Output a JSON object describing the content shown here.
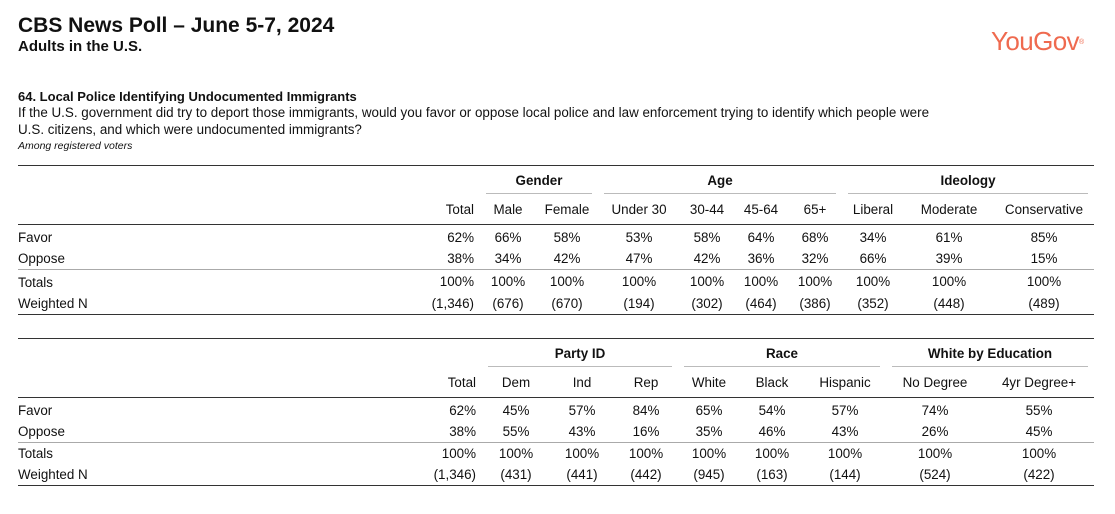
{
  "header": {
    "title": "CBS News Poll – June 5-7, 2024",
    "subtitle": "Adults in the U.S.",
    "logo": "YouGov",
    "logo_mark": "®",
    "brand_color": "#ef6a4f"
  },
  "question": {
    "title": "64. Local Police Identifying Undocumented Immigrants",
    "text_line1": "If the U.S. government did try to deport those immigrants, would you favor or oppose local police and law enforcement trying to identify which people were",
    "text_line2": "U.S. citizens, and which were undocumented immigrants?",
    "note": "Among registered voters"
  },
  "table1": {
    "groups": [
      "Gender",
      "Age",
      "Ideology"
    ],
    "columns": [
      "Total",
      "Male",
      "Female",
      "Under 30",
      "30-44",
      "45-64",
      "65+",
      "Liberal",
      "Moderate",
      "Conservative"
    ],
    "rows": [
      {
        "label": "Favor",
        "values": [
          "62%",
          "66%",
          "58%",
          "53%",
          "58%",
          "64%",
          "68%",
          "34%",
          "61%",
          "85%"
        ]
      },
      {
        "label": "Oppose",
        "values": [
          "38%",
          "34%",
          "42%",
          "47%",
          "42%",
          "36%",
          "32%",
          "66%",
          "39%",
          "15%"
        ]
      },
      {
        "label": "Totals",
        "values": [
          "100%",
          "100%",
          "100%",
          "100%",
          "100%",
          "100%",
          "100%",
          "100%",
          "100%",
          "100%"
        ]
      },
      {
        "label": "Weighted N",
        "values": [
          "(1,346)",
          "(676)",
          "(670)",
          "(194)",
          "(302)",
          "(464)",
          "(386)",
          "(352)",
          "(448)",
          "(489)"
        ]
      }
    ]
  },
  "table2": {
    "groups": [
      "Party ID",
      "Race",
      "White by Education"
    ],
    "columns": [
      "Total",
      "Dem",
      "Ind",
      "Rep",
      "White",
      "Black",
      "Hispanic",
      "No Degree",
      "4yr Degree+"
    ],
    "rows": [
      {
        "label": "Favor",
        "values": [
          "62%",
          "45%",
          "57%",
          "84%",
          "65%",
          "54%",
          "57%",
          "74%",
          "55%"
        ]
      },
      {
        "label": "Oppose",
        "values": [
          "38%",
          "55%",
          "43%",
          "16%",
          "35%",
          "46%",
          "43%",
          "26%",
          "45%"
        ]
      },
      {
        "label": "Totals",
        "values": [
          "100%",
          "100%",
          "100%",
          "100%",
          "100%",
          "100%",
          "100%",
          "100%",
          "100%"
        ]
      },
      {
        "label": "Weighted N",
        "values": [
          "(1,346)",
          "(431)",
          "(441)",
          "(442)",
          "(945)",
          "(163)",
          "(144)",
          "(524)",
          "(422)"
        ]
      }
    ]
  }
}
